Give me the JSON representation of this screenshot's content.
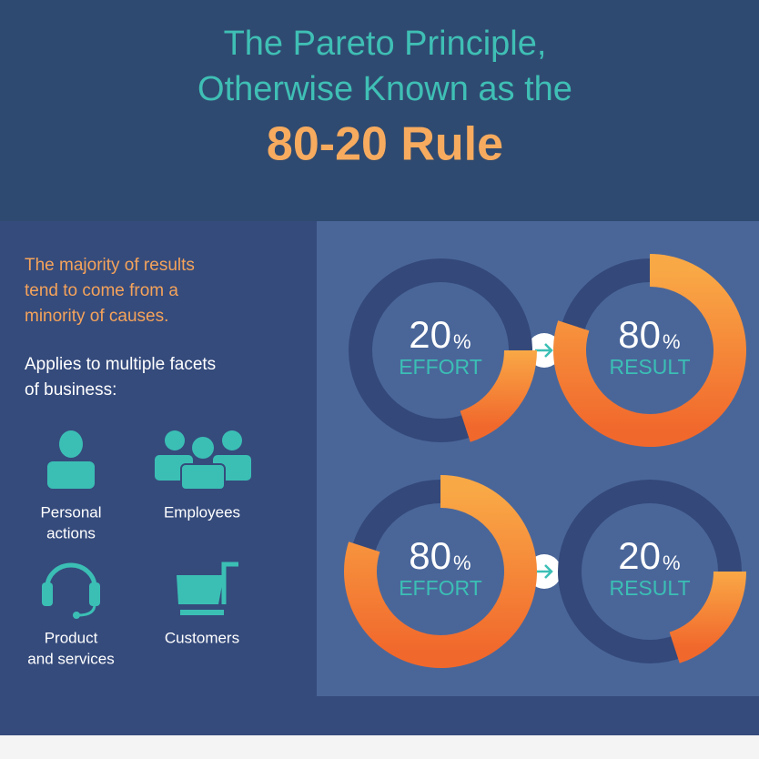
{
  "header": {
    "title_lines": [
      "The Pareto Principle,",
      "Otherwise Known as the"
    ],
    "headline": "80-20 Rule"
  },
  "intro": {
    "highlight_lines": [
      "The majority of results",
      "tend to come from a",
      "minority of causes."
    ],
    "lead_lines": [
      "Applies to multiple facets",
      "of business:"
    ]
  },
  "facets": [
    {
      "label_lines": [
        "Personal",
        "actions"
      ]
    },
    {
      "label_lines": [
        "Employees"
      ]
    },
    {
      "label_lines": [
        "Product",
        "and services"
      ]
    },
    {
      "label_lines": [
        "Customers"
      ]
    }
  ],
  "donuts": [
    {
      "value": 20,
      "unit": "%",
      "caption": "EFFORT"
    },
    {
      "value": 80,
      "unit": "%",
      "caption": "RESULT"
    },
    {
      "value": 80,
      "unit": "%",
      "caption": "EFFORT"
    },
    {
      "value": 20,
      "unit": "%",
      "caption": "RESULT"
    }
  ]
}
